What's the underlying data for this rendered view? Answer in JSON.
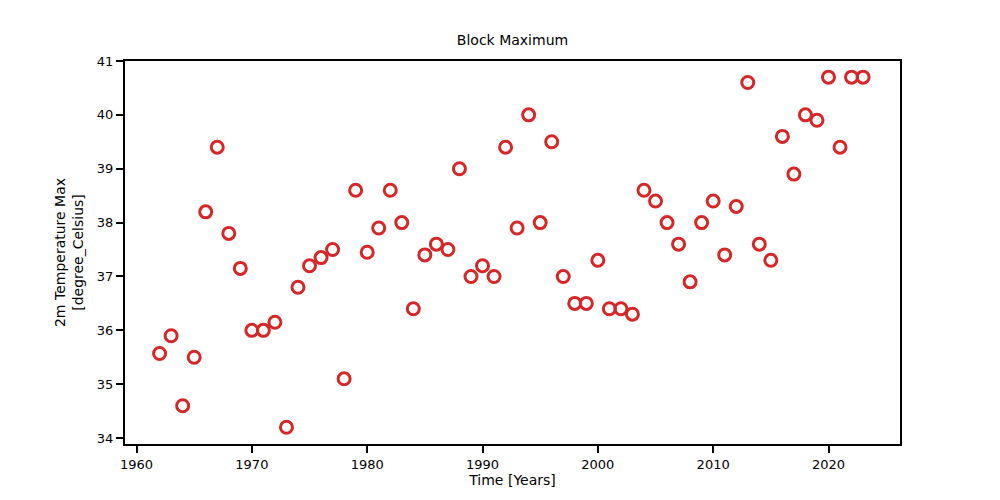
{
  "chart_data": {
    "type": "scatter",
    "title": "Block Maximum",
    "x_label": "Time [Years]",
    "y_label": "2m Temperature Max\n[degree_Celsius]",
    "x": [
      1962,
      1963,
      1964,
      1965,
      1966,
      1967,
      1968,
      1969,
      1970,
      1971,
      1972,
      1973,
      1974,
      1975,
      1976,
      1977,
      1978,
      1979,
      1980,
      1981,
      1982,
      1983,
      1984,
      1985,
      1986,
      1987,
      1988,
      1989,
      1990,
      1991,
      1992,
      1993,
      1994,
      1995,
      1996,
      1997,
      1998,
      1999,
      2000,
      2001,
      2002,
      2003,
      2004,
      2005,
      2006,
      2007,
      2008,
      2009,
      2010,
      2011,
      2012,
      2013,
      2014,
      2015,
      2016,
      2017,
      2018,
      2019,
      2020,
      2021,
      2022,
      2023
    ],
    "values": [
      35.57,
      35.9,
      34.6,
      35.5,
      38.2,
      39.4,
      37.8,
      37.15,
      36.0,
      36.0,
      36.15,
      34.2,
      36.8,
      37.2,
      37.35,
      37.5,
      35.1,
      38.6,
      37.45,
      37.9,
      38.6,
      38.0,
      36.4,
      37.4,
      37.6,
      37.5,
      39.0,
      37.0,
      37.2,
      37.0,
      39.4,
      37.9,
      40.0,
      38.0,
      39.5,
      37.0,
      36.5,
      36.5,
      37.3,
      36.4,
      36.4,
      36.3,
      38.6,
      38.4,
      38.0,
      37.6,
      36.9,
      38.0,
      38.4,
      37.4,
      38.3,
      40.6,
      37.6,
      37.3,
      39.6,
      38.9,
      40.0,
      39.9,
      40.7,
      39.4,
      40.7,
      40.7
    ],
    "color": "#d62728",
    "marker": "circle-open",
    "xlim": [
      1959,
      2026.2
    ],
    "xticks": [
      1960,
      1970,
      1980,
      1990,
      2000,
      2010,
      2020
    ],
    "ylim": [
      33.89,
      41
    ],
    "yticks": [
      34,
      35,
      36,
      37,
      38,
      39,
      40,
      41
    ],
    "grid": false
  }
}
